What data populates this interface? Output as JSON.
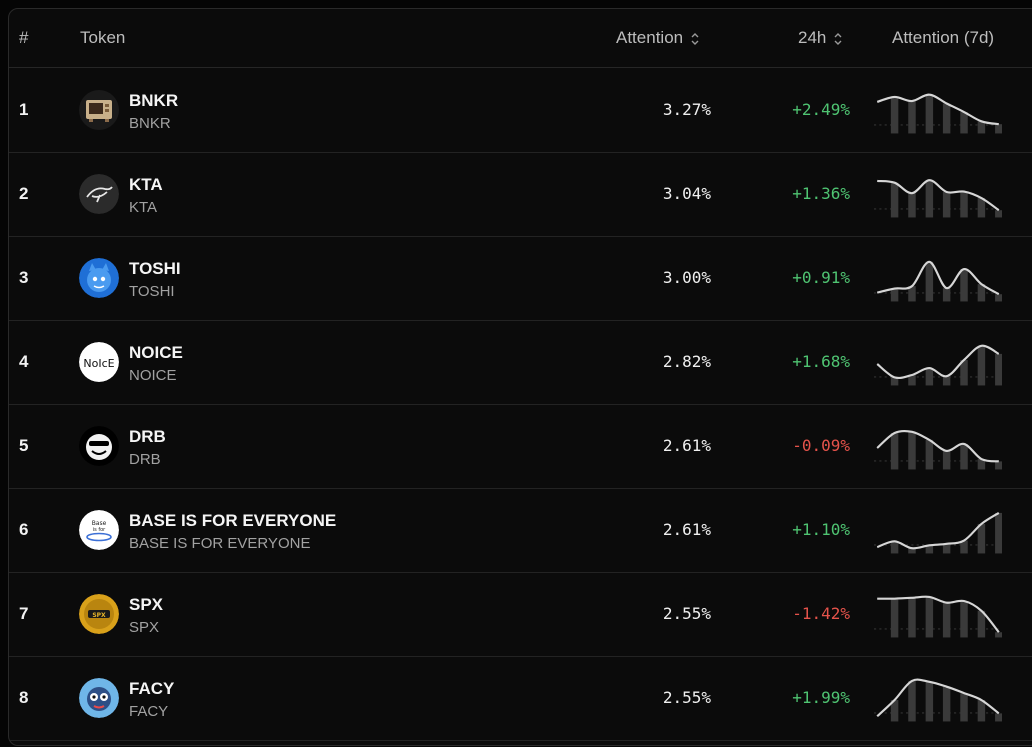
{
  "colors": {
    "positive": "#4fc472",
    "negative": "#e5534b",
    "background": "#0b0b0b"
  },
  "header": {
    "rank": "#",
    "token": "Token",
    "attention": "Attention",
    "change": "24h",
    "attention7d": "Attention (7d)"
  },
  "rows": [
    {
      "rank": "1",
      "name": "BNKR",
      "symbol": "BNKR",
      "attention": "3.27%",
      "change": "+2.49%",
      "direction": "up",
      "avatar": "bnkr-logo",
      "trend": [
        0.7,
        0.82,
        0.72,
        0.88,
        0.66,
        0.45,
        0.22,
        0.15
      ]
    },
    {
      "rank": "2",
      "name": "KTA",
      "symbol": "KTA",
      "attention": "3.04%",
      "change": "+1.36%",
      "direction": "up",
      "avatar": "kta-logo",
      "trend": [
        0.82,
        0.78,
        0.52,
        0.84,
        0.55,
        0.56,
        0.4,
        0.1
      ]
    },
    {
      "rank": "3",
      "name": "TOSHI",
      "symbol": "TOSHI",
      "attention": "3.00%",
      "change": "+0.91%",
      "direction": "up",
      "avatar": "toshi-logo",
      "trend": [
        0.14,
        0.24,
        0.3,
        0.9,
        0.25,
        0.72,
        0.35,
        0.1
      ]
    },
    {
      "rank": "4",
      "name": "NOICE",
      "symbol": "NOICE",
      "attention": "2.82%",
      "change": "+1.68%",
      "direction": "up",
      "avatar": "noice-logo",
      "trend": [
        0.45,
        0.12,
        0.18,
        0.35,
        0.15,
        0.55,
        0.9,
        0.7
      ]
    },
    {
      "rank": "5",
      "name": "DRB",
      "symbol": "DRB",
      "attention": "2.61%",
      "change": "-0.09%",
      "direction": "down",
      "avatar": "drb-logo",
      "trend": [
        0.45,
        0.82,
        0.85,
        0.65,
        0.38,
        0.55,
        0.18,
        0.12
      ]
    },
    {
      "rank": "6",
      "name": "BASE IS FOR EVERYONE",
      "symbol": "BASE IS FOR EVERYONE",
      "attention": "2.61%",
      "change": "+1.10%",
      "direction": "up",
      "avatar": "base-logo",
      "trend": [
        0.08,
        0.22,
        0.05,
        0.12,
        0.16,
        0.24,
        0.65,
        0.92
      ]
    },
    {
      "rank": "7",
      "name": "SPX",
      "symbol": "SPX",
      "attention": "2.55%",
      "change": "-1.42%",
      "direction": "down",
      "avatar": "spx-logo",
      "trend": [
        0.88,
        0.88,
        0.9,
        0.92,
        0.78,
        0.82,
        0.58,
        0.05
      ]
    },
    {
      "rank": "8",
      "name": "FACY",
      "symbol": "FACY",
      "attention": "2.55%",
      "change": "+1.99%",
      "direction": "up",
      "avatar": "facy-logo",
      "trend": [
        0.05,
        0.45,
        0.92,
        0.9,
        0.78,
        0.62,
        0.45,
        0.12
      ]
    }
  ]
}
